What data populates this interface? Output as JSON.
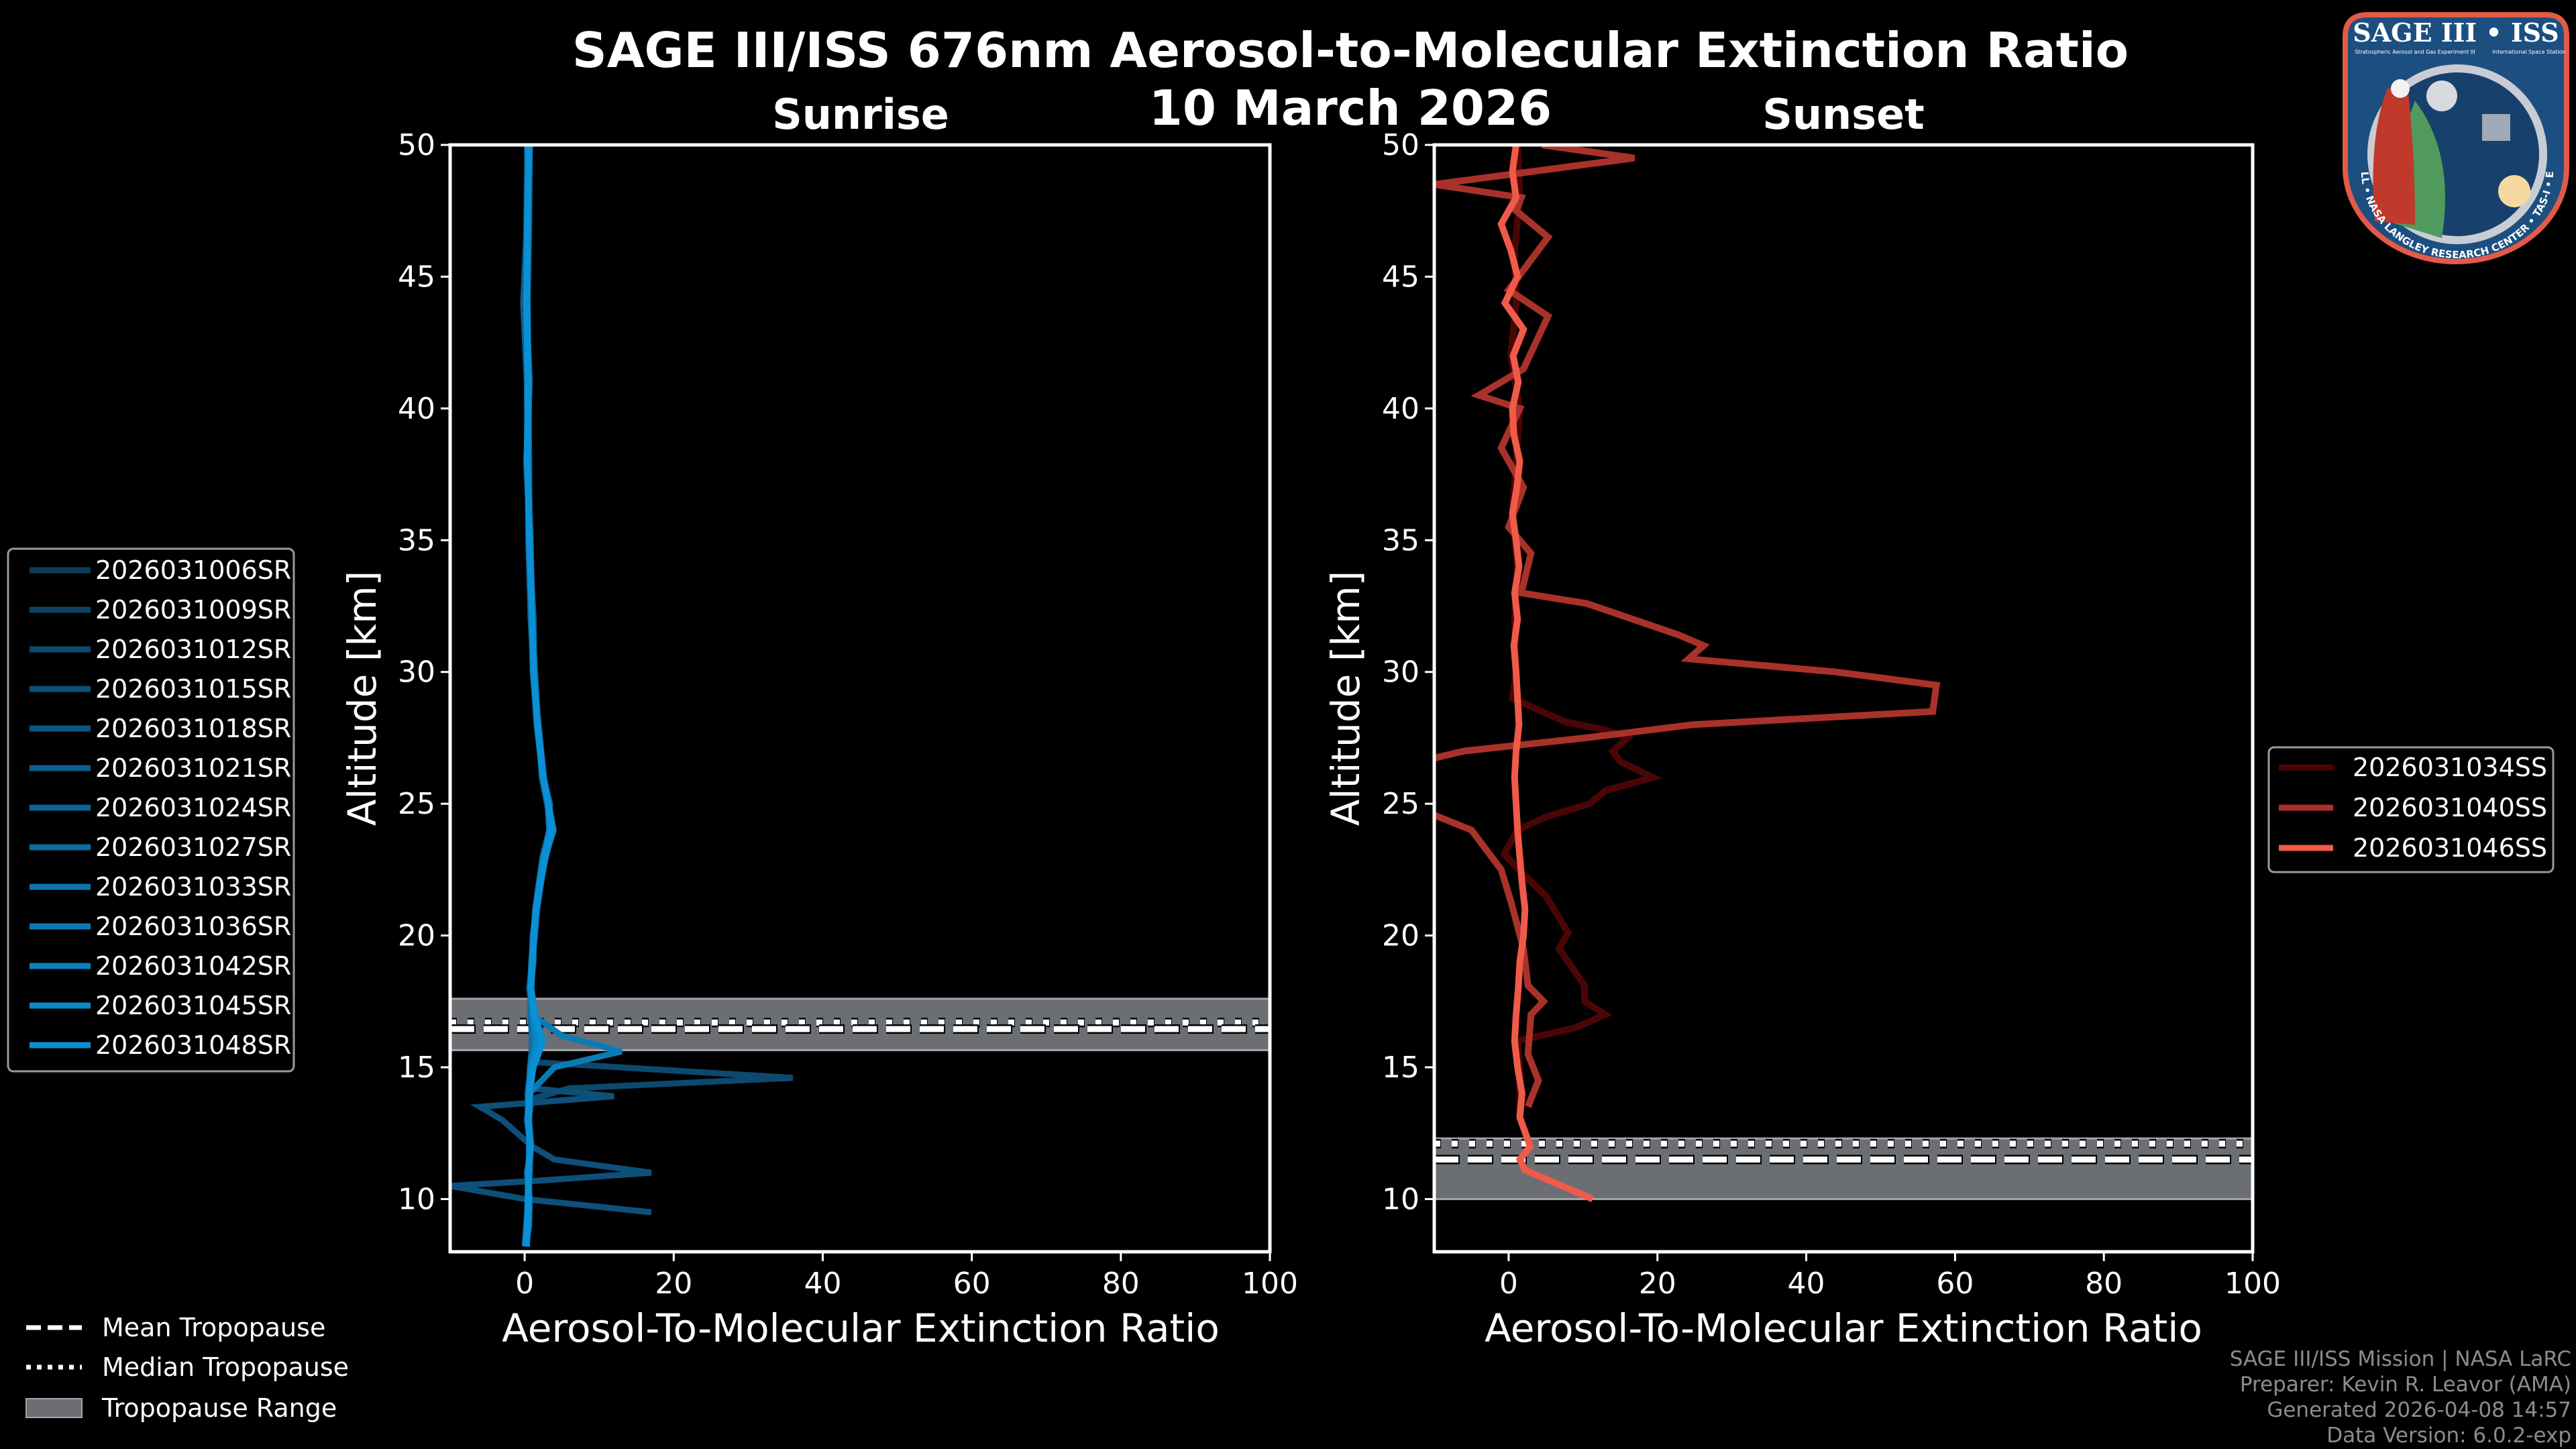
{
  "title": "SAGE III/ISS 676nm Aerosol-to-Molecular Extinction Ratio",
  "date": "10 March 2026",
  "footer": [
    "SAGE III/ISS Mission | NASA LaRC",
    "Preparer: Kevin R. Leavor (AMA)",
    "Generated 2026-04-08 14:57",
    "Data Version: 6.0.2-exp"
  ],
  "tropopause_legend": {
    "mean": "Mean Tropopause",
    "median": "Median Tropopause",
    "range": "Tropopause Range"
  },
  "logo": {
    "title": "SAGE III • ISS",
    "line1": "Stratospheric Aerosol and Gas Experiment III",
    "line2": "International Space Station",
    "ring": "BALL • NASA LANGLEY RESEARCH CENTER • TAS-I • ESA"
  },
  "colors": {
    "background": "#000000",
    "tropopause_fill": "#6b6e72",
    "tropopause_edge": "#a5a5a5",
    "axis": "#ffffff"
  },
  "chart_data": [
    {
      "type": "line",
      "title": "Sunrise",
      "xlabel": "Aerosol-To-Molecular Extinction Ratio",
      "ylabel": "Altitude [km]",
      "xlim": [
        -10,
        100
      ],
      "ylim": [
        8,
        50
      ],
      "xticks": [
        0,
        20,
        40,
        60,
        80,
        100
      ],
      "yticks": [
        10,
        15,
        20,
        25,
        30,
        35,
        40,
        45,
        50
      ],
      "legend_position": "left-outside",
      "tropopause": {
        "range": [
          15.65,
          17.6
        ],
        "mean": 16.45,
        "median": 16.7
      },
      "altitude_grid": [
        8.2,
        9,
        10,
        11,
        12,
        13,
        14,
        15,
        16,
        17,
        18,
        19,
        20,
        21,
        22,
        23,
        24,
        25,
        26,
        28,
        30,
        32,
        35,
        38,
        41,
        44,
        47,
        50
      ],
      "series": [
        {
          "name": "2026031006SR",
          "color": "#0e3b5a",
          "ratio": [
            0.2,
            0.4,
            0.5,
            0.6,
            0.9,
            0.4,
            0.6,
            0.9,
            1.3,
            0.9,
            0.7,
            1.1,
            1.3,
            1.6,
            2.1,
            2.7,
            3.6,
            3.1,
            2.4,
            1.7,
            1.3,
            0.9,
            0.6,
            0.3,
            0.6,
            0.1,
            0.4,
            0.6
          ]
        },
        {
          "name": "2026031009SR",
          "color": "#0e4264",
          "ratio": [
            0.1,
            0.3,
            0.6,
            0.4,
            0.7,
            0.6,
            0.5,
            0.7,
            1.1,
            1.2,
            0.9,
            0.9,
            1.1,
            1.5,
            1.9,
            2.5,
            3.4,
            3.3,
            2.6,
            1.9,
            1.1,
            1.1,
            0.8,
            0.5,
            0.4,
            0.3,
            0.2,
            0.4
          ]
        },
        {
          "name": "2026031012SR",
          "color": "#0d496e",
          "alt": [
            8.5,
            9,
            10,
            11,
            12,
            13,
            13.8,
            14.2,
            14.6,
            15.2,
            16,
            17,
            18,
            19,
            20,
            22,
            24,
            25,
            26,
            28,
            30,
            32,
            35,
            38,
            41,
            44,
            47,
            50
          ],
          "ratio": [
            0.3,
            0.5,
            0.6,
            0.4,
            0.7,
            0.5,
            1,
            6,
            36,
            1,
            1.2,
            0.9,
            0.8,
            1,
            1.3,
            2,
            3.4,
            3.3,
            2.4,
            1.6,
            1.1,
            0.9,
            0.6,
            0.4,
            0.5,
            0.3,
            0.4,
            0.6
          ]
        },
        {
          "name": "2026031015SR",
          "color": "#0d5079",
          "alt": [
            9.5,
            10,
            10.5,
            10.7,
            11,
            11.5,
            12,
            12.5,
            13,
            13.5,
            13.9,
            14.2,
            15,
            16,
            17,
            18,
            19,
            20,
            22,
            24,
            25,
            26,
            28,
            30,
            32,
            35,
            38,
            41,
            44,
            47,
            50
          ],
          "ratio": [
            17,
            0,
            -10,
            2,
            17,
            4,
            1,
            -1,
            -3,
            -6,
            12,
            1,
            0.7,
            1.1,
            0.8,
            0.9,
            1.1,
            1.2,
            2.1,
            3.7,
            3.0,
            2.5,
            1.8,
            1.2,
            1,
            0.7,
            0.5,
            0.4,
            0.3,
            0.5,
            0.6
          ]
        },
        {
          "name": "2026031018SR",
          "color": "#0d5783",
          "ratio": [
            0.3,
            0.5,
            0.4,
            0.7,
            0.8,
            0.3,
            0.7,
            1.0,
            1.2,
            1.1,
            0.6,
            1.0,
            1.4,
            1.7,
            2.2,
            2.8,
            3.7,
            3.0,
            2.3,
            1.8,
            1.4,
            1.0,
            0.7,
            0.2,
            0.7,
            0.2,
            0.5,
            0.3
          ]
        },
        {
          "name": "2026031021SR",
          "color": "#0c5e8d",
          "ratio": [
            0.0,
            0.2,
            0.5,
            0.5,
            0.6,
            0.5,
            0.4,
            0.8,
            1.0,
            0.8,
            0.8,
            1.2,
            1.2,
            1.4,
            1.9,
            2.4,
            3.3,
            3.4,
            2.5,
            1.6,
            1.2,
            0.8,
            0.5,
            0.4,
            0.3,
            -0.2,
            0.3,
            0.5
          ]
        },
        {
          "name": "2026031024SR",
          "color": "#0c6597",
          "ratio": [
            0.2,
            0.6,
            0.7,
            0.3,
            0.9,
            0.6,
            0.8,
            1.1,
            1.4,
            1.0,
            0.9,
            1.0,
            1.3,
            1.5,
            2.0,
            2.6,
            3.5,
            3.2,
            2.6,
            1.8,
            1.3,
            1.2,
            0.6,
            0.6,
            0.5,
            0.4,
            0.6,
            0.7
          ]
        },
        {
          "name": "2026031027SR",
          "color": "#0c6da1",
          "ratio": [
            0.1,
            0.4,
            0.4,
            0.6,
            0.7,
            0.5,
            0.6,
            0.9,
            1.3,
            1.2,
            0.7,
            0.9,
            1.2,
            1.6,
            2.1,
            2.7,
            3.8,
            3.1,
            2.4,
            1.7,
            1.1,
            0.9,
            0.8,
            0.3,
            0.4,
            0.2,
            0.3,
            0.4
          ]
        },
        {
          "name": "2026031033SR",
          "color": "#0b74ab",
          "ratio": [
            0.3,
            0.3,
            0.5,
            0.4,
            0.8,
            0.4,
            0.5,
            0.8,
            1.1,
            0.9,
            0.8,
            1.1,
            1.3,
            1.5,
            2.0,
            2.5,
            3.6,
            3.3,
            2.5,
            1.8,
            1.2,
            1.0,
            0.7,
            0.5,
            0.6,
            0.3,
            0.5,
            0.5
          ]
        },
        {
          "name": "2026031036SR",
          "color": "#0b7bb6",
          "alt": [
            8.3,
            9,
            10,
            11,
            12,
            13,
            14,
            15,
            15.6,
            16.2,
            17,
            18,
            19,
            20,
            22,
            24,
            25,
            26,
            28,
            30,
            32,
            35,
            38,
            41,
            44,
            47,
            50
          ],
          "ratio": [
            0.1,
            0.4,
            0.6,
            0.5,
            0.7,
            0.4,
            0.6,
            4,
            13,
            5,
            1,
            0.9,
            1,
            1.1,
            2,
            3.3,
            3.1,
            2.4,
            1.7,
            1.2,
            1,
            0.6,
            0.4,
            0.5,
            0.2,
            0.4,
            0.5
          ]
        },
        {
          "name": "2026031042SR",
          "color": "#0b82c0",
          "ratio": [
            0.2,
            0.5,
            0.6,
            0.6,
            0.6,
            0.6,
            0.7,
            1.0,
            1.5,
            1.1,
            0.8,
            1.0,
            1.2,
            1.6,
            2.2,
            2.8,
            3.9,
            3.2,
            2.4,
            1.7,
            1.3,
            1.0,
            0.6,
            0.4,
            0.5,
            0.4,
            0.3,
            0.7
          ]
        },
        {
          "name": "2026031045SR",
          "color": "#0a89ca",
          "ratio": [
            0.1,
            0.3,
            0.4,
            0.5,
            0.7,
            0.5,
            0.6,
            0.8,
            1.8,
            1.4,
            0.9,
            1.1,
            1.3,
            1.5,
            2.0,
            2.6,
            3.5,
            3.2,
            2.5,
            1.8,
            1.2,
            1.0,
            0.7,
            0.3,
            0.4,
            0.2,
            0.4,
            0.5
          ]
        },
        {
          "name": "2026031048SR",
          "color": "#0a90d4",
          "ratio": [
            0.2,
            0.4,
            0.5,
            0.5,
            0.8,
            0.5,
            0.6,
            1.2,
            2.5,
            1.3,
            0.8,
            1.0,
            1.2,
            1.5,
            2.1,
            2.7,
            3.6,
            3.2,
            2.5,
            1.7,
            1.2,
            1.0,
            0.6,
            0.4,
            0.5,
            0.3,
            0.4,
            0.5
          ]
        }
      ]
    },
    {
      "type": "line",
      "title": "Sunset",
      "xlabel": "Aerosol-To-Molecular Extinction Ratio",
      "ylabel": "Altitude [km]",
      "xlim": [
        -10,
        100
      ],
      "ylim": [
        8,
        50
      ],
      "xticks": [
        0,
        20,
        40,
        60,
        80,
        100
      ],
      "yticks": [
        10,
        15,
        20,
        25,
        30,
        35,
        40,
        45,
        50
      ],
      "legend_position": "right-outside",
      "tropopause": {
        "range": [
          10.0,
          12.3
        ],
        "mean": 11.5,
        "median": 12.1
      },
      "series": [
        {
          "name": "2026031034SS",
          "color": "#4a0606",
          "alt": [
            13,
            14,
            15,
            16,
            16.5,
            17,
            17.5,
            18.1,
            19.5,
            20.1,
            21.5,
            22.4,
            23.1,
            24,
            24.5,
            25,
            25.5,
            26,
            26.6,
            27,
            27.5,
            27.8,
            28.1,
            29,
            30,
            32,
            34,
            36,
            38,
            40,
            42,
            44,
            46,
            48,
            50
          ],
          "ratio": [
            1.5,
            1.5,
            1.5,
            1.2,
            9,
            13,
            10.2,
            10.2,
            6.8,
            8,
            5,
            1.7,
            -0.6,
            1.2,
            5,
            10.9,
            13,
            19.4,
            15,
            14,
            16,
            13,
            7.7,
            0.5,
            1,
            0.8,
            1.2,
            0.5,
            1,
            1.5,
            0.3,
            1,
            0.8,
            1.5,
            1.2
          ]
        },
        {
          "name": "2026031040SS",
          "color": "#a8322a",
          "alt": [
            13.5,
            14.5,
            15.5,
            17,
            17.5,
            18.1,
            19.5,
            21.3,
            22.5,
            24,
            24.8,
            26.6,
            27,
            27.5,
            28,
            28.5,
            29.5,
            30,
            30.5,
            31,
            31.4,
            32.6,
            33,
            34.5,
            35.5,
            37,
            38.5,
            40,
            40.5,
            41.5,
            43.5,
            44.5,
            46.5,
            47.5,
            48,
            48.5,
            49.5,
            50
          ],
          "ratio": [
            2.6,
            4,
            2.6,
            3,
            4.7,
            2.6,
            2,
            0.3,
            -1,
            -5,
            -12,
            -12,
            -6,
            10.4,
            24.7,
            57,
            57.5,
            44,
            24.2,
            26.2,
            22.9,
            10.5,
            1.7,
            3,
            0,
            2,
            -1,
            1.5,
            -4,
            2,
            5.3,
            0,
            5.3,
            1,
            1.7,
            -10,
            16.9,
            4.5
          ]
        },
        {
          "name": "2026031046SS",
          "color": "#f05a48",
          "alt": [
            10,
            11.1,
            11.5,
            12,
            13.1,
            14,
            15,
            16,
            17,
            18,
            19,
            20,
            21,
            22,
            23,
            24,
            25,
            26,
            27,
            28,
            29,
            30,
            31,
            32,
            33,
            34,
            35,
            36,
            37,
            38,
            39,
            40,
            41,
            42,
            43,
            44,
            45,
            46,
            47,
            48,
            49,
            50
          ],
          "ratio": [
            11.3,
            2.2,
            1.5,
            2.9,
            1.5,
            1.8,
            1.2,
            0.8,
            1,
            1.3,
            1.5,
            2,
            2.2,
            1.8,
            1.5,
            1.2,
            1,
            0.8,
            1,
            1.4,
            1.2,
            1,
            0.7,
            1.2,
            0.8,
            1.4,
            1,
            0.5,
            1.1,
            1.5,
            0.7,
            0.5,
            1.3,
            0.6,
            2,
            -0.5,
            1.2,
            0.3,
            -1,
            1,
            0.5,
            1
          ]
        }
      ]
    }
  ]
}
